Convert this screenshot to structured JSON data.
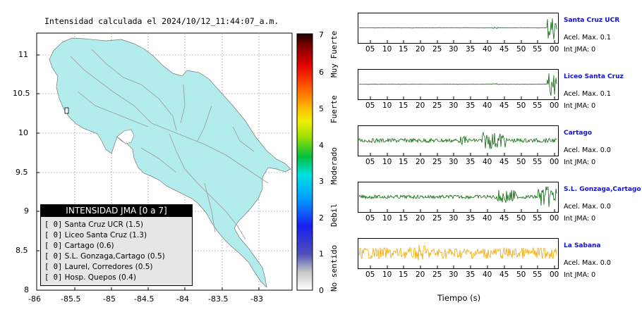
{
  "title": "Intensidad calculada el 2024/10/12_11:44:07_a.m.",
  "map": {
    "y_ticks": [
      "11",
      "10.5",
      "10",
      "9.5",
      "9",
      "8.5",
      "8"
    ],
    "x_ticks": [
      "-86",
      "-85.5",
      "-85",
      "-84.5",
      "-84",
      "-83.5",
      "-83"
    ],
    "land_color": "#b3ecec"
  },
  "legend": {
    "title": "INTENSIDAD JMA [0 a 7]",
    "items": [
      {
        "level": "[ 0]",
        "station": "Santa Cruz UCR (1.5)"
      },
      {
        "level": "[ 0]",
        "station": "Liceo Santa Cruz (1.3)"
      },
      {
        "level": "[ 0]",
        "station": "Cartago (0.6)"
      },
      {
        "level": "[ 0]",
        "station": "S.L. Gonzaga,Cartago (0.5)"
      },
      {
        "level": "[ 0]",
        "station": "Laurel, Corredores (0.5)"
      },
      {
        "level": "[ 0]",
        "station": "Hosp. Quepos (0.4)"
      }
    ]
  },
  "colorbar": {
    "ticks": [
      "7",
      "6",
      "5",
      "4",
      "3",
      "2",
      "1",
      "0"
    ],
    "labels": [
      "Muy Fuerte",
      "Fuerte",
      "Moderado",
      "Debil",
      "No sentido"
    ]
  },
  "stations": [
    {
      "name": "Santa Cruz UCR",
      "acel": "Acel. Max. 0.1",
      "int": "Int JMA: 0",
      "color": "#0a6a0a"
    },
    {
      "name": "Liceo Santa Cruz",
      "acel": "Acel. Max. 0.1",
      "int": "Int JMA: 0",
      "color": "#0a6a0a"
    },
    {
      "name": "Cartago",
      "acel": "Acel. Max. 0.0",
      "int": "Int JMA: 0",
      "color": "#0a6a0a"
    },
    {
      "name": "S.L. Gonzaga,Cartago",
      "acel": "Acel. Max. 0.0",
      "int": "Int JMA: 0",
      "color": "#0a6a0a"
    },
    {
      "name": "La Sabana",
      "acel": "Acel. Max. 0.0",
      "int": "Int JMA: 0",
      "color": "#f5a800"
    }
  ],
  "time_ticks": [
    "05",
    "10",
    "15",
    "20",
    "25",
    "30",
    "35",
    "40",
    "45",
    "50",
    "55",
    "00"
  ],
  "time_label": "Tiempo (s)"
}
